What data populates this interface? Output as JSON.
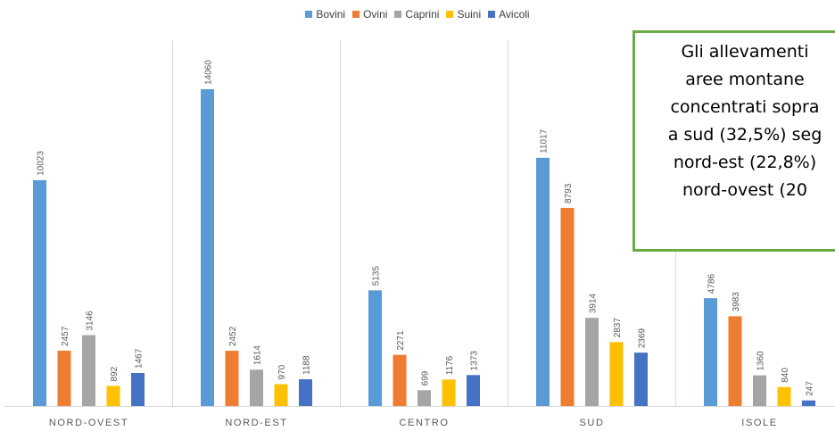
{
  "chart_data": {
    "type": "bar",
    "categories": [
      "NORD-OVEST",
      "NORD-EST",
      "CENTRO",
      "SUD",
      "ISOLE"
    ],
    "series": [
      {
        "name": "Bovini",
        "color": "#5b9bd5",
        "values": [
          10023,
          14060,
          5135,
          11017,
          4786
        ]
      },
      {
        "name": "Ovini",
        "color": "#ed7d31",
        "values": [
          2457,
          2452,
          2271,
          8793,
          3983
        ]
      },
      {
        "name": "Caprini",
        "color": "#a5a5a5",
        "values": [
          3146,
          1614,
          699,
          3914,
          1360
        ]
      },
      {
        "name": "Suini",
        "color": "#ffc000",
        "values": [
          892,
          970,
          1176,
          2837,
          840
        ]
      },
      {
        "name": "Avicoli",
        "color": "#4472c4",
        "values": [
          1467,
          1188,
          1373,
          2369,
          247
        ]
      }
    ],
    "ylim": [
      0,
      14500
    ],
    "grid": false,
    "legend_position": "top-center",
    "title": "",
    "xlabel": "",
    "ylabel": ""
  },
  "callout": {
    "lines": [
      "Gli allevamenti",
      "aree montane",
      "concentrati sopra",
      "a sud (32,5%) seg",
      "nord-est (22,8%)",
      "nord-ovest (20"
    ]
  }
}
